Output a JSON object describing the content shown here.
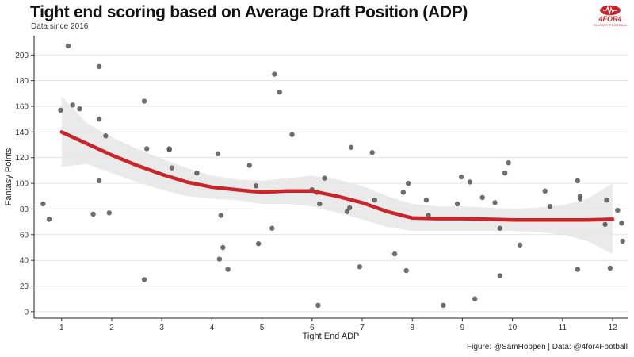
{
  "header": {
    "title": "Tight end scoring based on Average Draft Position (ADP)",
    "subtitle": "Data since 2016"
  },
  "logo": {
    "text": "4FOR4",
    "subtext": "FANTASY FOOTBALL",
    "icon": "football-icon"
  },
  "caption": "Figure: @SamHoppen | Data: @4for4Football",
  "colors": {
    "smooth_line": "#c8262b",
    "band": "#e6e6e6",
    "points": "#555555",
    "grid": "#dcdcdc",
    "brand": "#c8262b"
  },
  "chart_data": {
    "type": "scatter",
    "title": "Tight end scoring based on Average Draft Position (ADP)",
    "subtitle": "Data since 2016",
    "xlabel": "Tight End ADP",
    "ylabel": "Fantasy Points",
    "xlim": [
      0.45,
      12.3
    ],
    "ylim": [
      -5,
      215
    ],
    "xticks": [
      1,
      2,
      3,
      4,
      5,
      6,
      7,
      8,
      9,
      10,
      11,
      12
    ],
    "yticks": [
      0,
      20,
      40,
      60,
      80,
      100,
      120,
      140,
      160,
      180,
      200
    ],
    "grid": "horizontal",
    "points": [
      [
        0.63,
        84
      ],
      [
        0.75,
        72
      ],
      [
        0.98,
        157
      ],
      [
        1.13,
        207
      ],
      [
        1.22,
        161
      ],
      [
        1.36,
        158
      ],
      [
        1.63,
        76
      ],
      [
        1.75,
        191
      ],
      [
        1.75,
        150
      ],
      [
        1.75,
        102
      ],
      [
        1.88,
        137
      ],
      [
        1.95,
        77
      ],
      [
        2.65,
        164
      ],
      [
        2.65,
        25
      ],
      [
        2.7,
        127
      ],
      [
        3.15,
        126
      ],
      [
        3.15,
        127
      ],
      [
        3.2,
        112
      ],
      [
        3.7,
        108
      ],
      [
        4.12,
        123
      ],
      [
        4.15,
        41
      ],
      [
        4.18,
        75
      ],
      [
        4.22,
        50
      ],
      [
        4.32,
        33
      ],
      [
        4.75,
        114
      ],
      [
        4.88,
        98
      ],
      [
        4.93,
        53
      ],
      [
        5.2,
        65
      ],
      [
        5.25,
        185
      ],
      [
        5.35,
        171
      ],
      [
        5.6,
        138
      ],
      [
        6.0,
        95
      ],
      [
        6.1,
        93
      ],
      [
        6.12,
        5
      ],
      [
        6.15,
        84
      ],
      [
        6.25,
        104
      ],
      [
        6.7,
        78
      ],
      [
        6.75,
        81
      ],
      [
        6.78,
        128
      ],
      [
        6.95,
        35
      ],
      [
        7.2,
        124
      ],
      [
        7.25,
        87
      ],
      [
        7.65,
        45
      ],
      [
        7.82,
        93
      ],
      [
        7.88,
        32
      ],
      [
        7.92,
        100
      ],
      [
        8.28,
        87
      ],
      [
        8.32,
        75
      ],
      [
        8.62,
        5
      ],
      [
        8.9,
        84
      ],
      [
        8.98,
        105
      ],
      [
        9.15,
        101
      ],
      [
        9.25,
        10
      ],
      [
        9.4,
        89
      ],
      [
        9.65,
        85
      ],
      [
        9.75,
        28
      ],
      [
        9.75,
        65
      ],
      [
        9.85,
        108
      ],
      [
        9.92,
        116
      ],
      [
        10.15,
        52
      ],
      [
        10.65,
        94
      ],
      [
        10.75,
        82
      ],
      [
        11.3,
        102
      ],
      [
        11.3,
        33
      ],
      [
        11.35,
        90
      ],
      [
        11.35,
        88
      ],
      [
        11.85,
        68
      ],
      [
        11.88,
        87
      ],
      [
        11.95,
        34
      ],
      [
        12.1,
        79
      ],
      [
        12.18,
        69
      ],
      [
        12.2,
        55
      ]
    ],
    "smooth": {
      "x": [
        1.0,
        1.5,
        2.0,
        2.5,
        3.0,
        3.5,
        4.0,
        4.5,
        5.0,
        5.5,
        6.0,
        6.5,
        7.0,
        7.5,
        8.0,
        8.5,
        9.0,
        9.5,
        10.0,
        10.5,
        11.0,
        11.5,
        12.0
      ],
      "y": [
        140,
        131,
        122,
        114,
        107,
        101,
        97,
        95,
        93,
        94,
        94,
        90,
        85,
        78,
        73,
        72.5,
        72.5,
        72,
        71.5,
        71.5,
        71.5,
        71.5,
        72
      ],
      "lower": [
        113,
        115,
        108,
        101,
        95,
        90,
        88,
        87,
        84,
        84,
        82,
        77,
        72,
        66,
        63,
        63,
        63,
        63,
        63,
        62,
        60,
        55,
        45
      ],
      "upper": [
        168,
        147,
        136,
        127,
        119,
        112,
        106,
        103,
        102,
        104,
        106,
        103,
        98,
        90,
        84,
        82,
        82,
        81,
        80,
        81,
        83,
        88,
        100
      ]
    }
  }
}
